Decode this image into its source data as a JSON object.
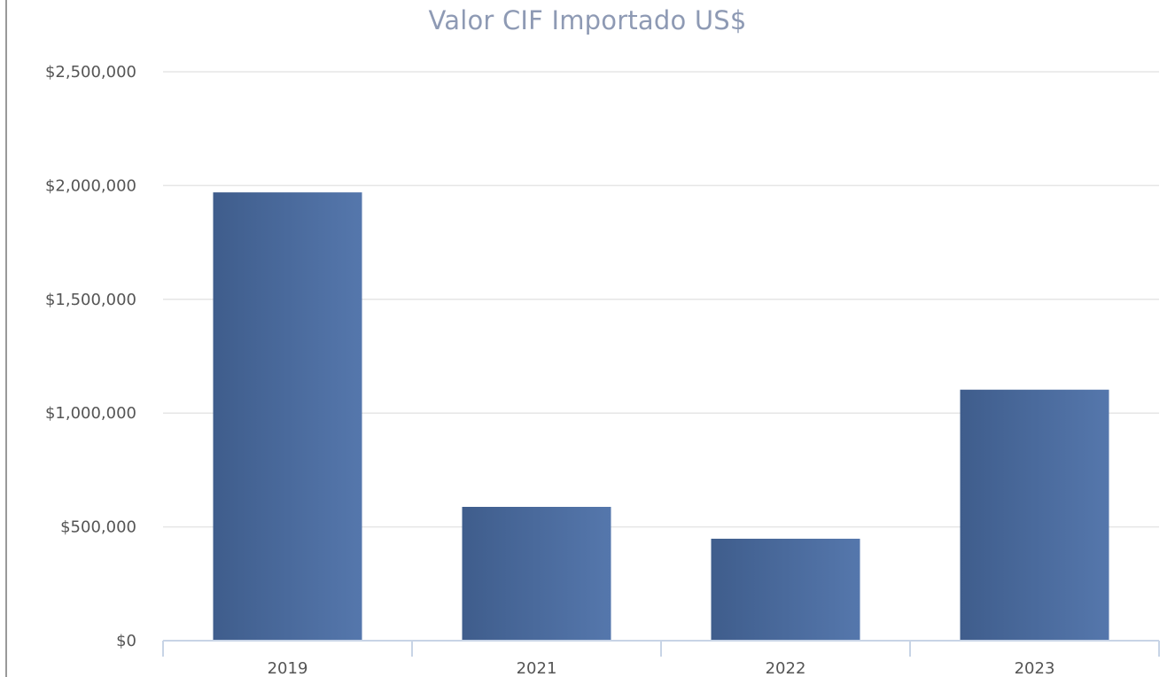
{
  "chart_data": {
    "type": "bar",
    "title": "Valor CIF Importado US$",
    "categories": [
      "2019",
      "2021",
      "2022",
      "2023"
    ],
    "values": [
      1970000,
      588000,
      448000,
      1103000
    ],
    "xlabel": "",
    "ylabel": "",
    "ylim": [
      0,
      2500000
    ],
    "yticks": [
      0,
      500000,
      1000000,
      1500000,
      2000000,
      2500000
    ],
    "ytick_labels": [
      "$0",
      "$500,000",
      "$1,000,000",
      "$1,500,000",
      "$2,000,000",
      "$2,500,000"
    ],
    "grid": true,
    "legend": "none",
    "colors": {
      "bar_dark": "#3f5d8c",
      "bar_light": "#5577ac",
      "grid": "#e6e6e6",
      "axis": "#c8d4e6",
      "title": "#8e9ab4"
    }
  }
}
